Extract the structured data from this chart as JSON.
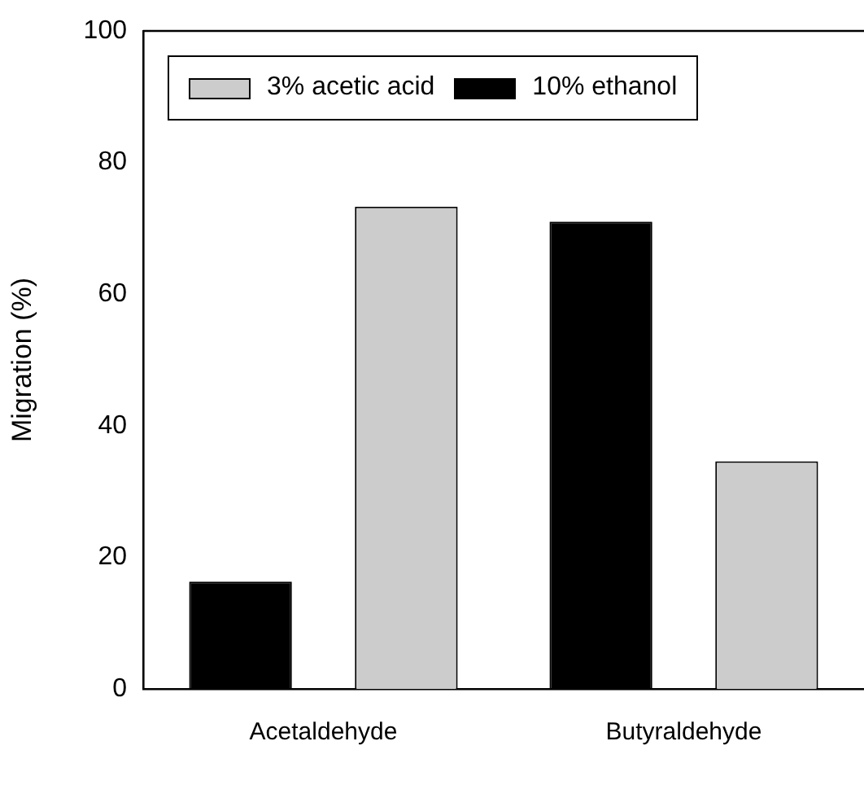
{
  "chart_data": {
    "type": "bar",
    "ylabel": "Migration (%)",
    "categories": [
      "Acetaldehyde",
      "Butyraldehyde"
    ],
    "series": [
      {
        "name": "3% acetic acid",
        "color": "#cccccc",
        "values": [
          73.3,
          34.6
        ]
      },
      {
        "name": "10% ethanol",
        "color": "#000000",
        "values": [
          16.3,
          71
        ]
      }
    ],
    "ylim": [
      0,
      100
    ],
    "yticks": [
      0,
      20,
      40,
      60,
      80,
      100
    ],
    "grid": false,
    "legend": "top left"
  }
}
